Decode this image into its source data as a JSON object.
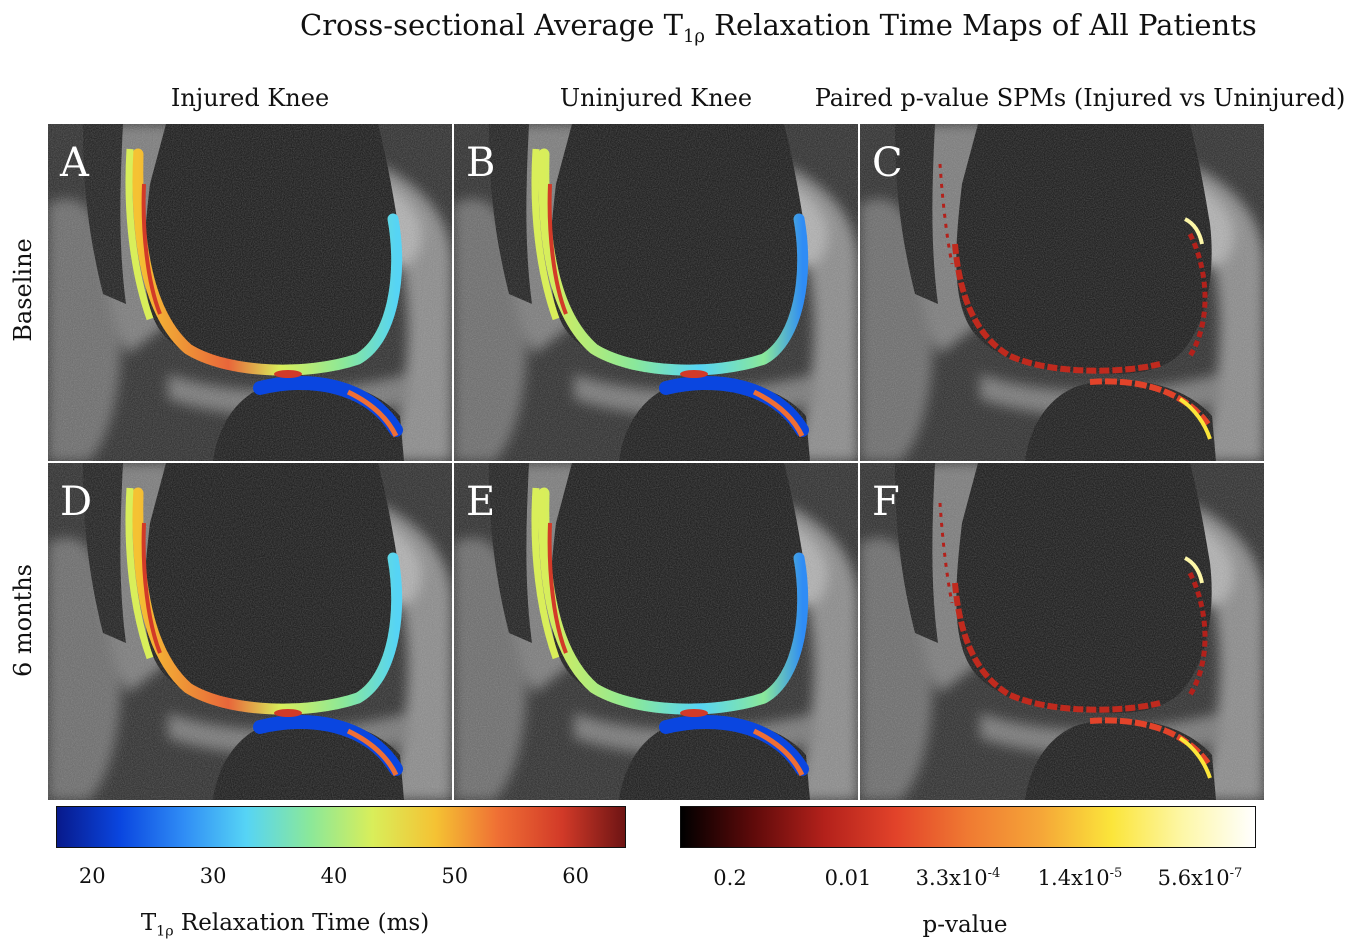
{
  "figure": {
    "title": {
      "pre": "Cross-sectional Average T",
      "sub": "1ρ",
      "post": " Relaxation Time Maps of All Patients"
    },
    "columns": [
      "Injured Knee",
      "Uninjured Knee",
      "Paired p-value SPMs (Injured vs Uninjured)"
    ],
    "rows": [
      "Baseline",
      "6 months"
    ],
    "panels": [
      {
        "letter": "A",
        "type": "t1rho"
      },
      {
        "letter": "B",
        "type": "t1rho"
      },
      {
        "letter": "C",
        "type": "pvalue"
      },
      {
        "letter": "D",
        "type": "t1rho"
      },
      {
        "letter": "E",
        "type": "t1rho"
      },
      {
        "letter": "F",
        "type": "pvalue"
      }
    ]
  },
  "colorbars": {
    "t1rho": {
      "min": 17,
      "max": 64,
      "ticks": [
        {
          "value": 20,
          "label": "20"
        },
        {
          "value": 30,
          "label": "30"
        },
        {
          "value": 40,
          "label": "40"
        },
        {
          "value": 50,
          "label": "50"
        },
        {
          "value": 60,
          "label": "60"
        }
      ],
      "label": {
        "pre": "T",
        "sub": "1ρ",
        "post": " Relaxation Time (ms)"
      },
      "colors": [
        "#081a8c",
        "#0a46e0",
        "#2f8cf5",
        "#56d4f5",
        "#8ae89a",
        "#d9ee5a",
        "#f5c233",
        "#ef6e34",
        "#d23a28",
        "#6e1414"
      ]
    },
    "pvalue": {
      "ticks": [
        {
          "label": "0.2",
          "sup": ""
        },
        {
          "label": "0.01",
          "sup": ""
        },
        {
          "label": "3.3x10",
          "sup": "-4"
        },
        {
          "label": "1.4x10",
          "sup": "-5"
        },
        {
          "label": "5.6x10",
          "sup": "-7"
        }
      ],
      "label": "p-value",
      "colors": [
        "#000000",
        "#5e0a0a",
        "#b3211b",
        "#e2432a",
        "#f07a32",
        "#f5a538",
        "#fbe53a",
        "#fdf7a8",
        "#ffffff"
      ]
    }
  }
}
